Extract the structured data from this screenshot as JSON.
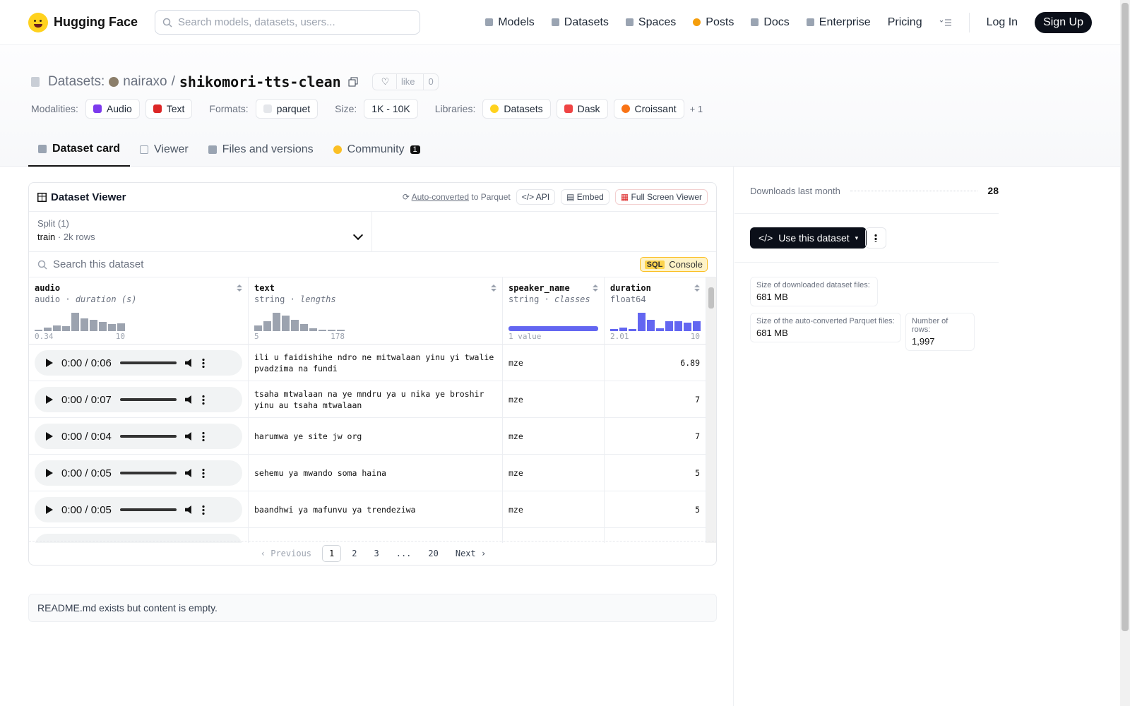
{
  "header": {
    "brand": "Hugging Face",
    "search_placeholder": "Search models, datasets, users...",
    "nav": [
      "Models",
      "Datasets",
      "Spaces",
      "Posts",
      "Docs",
      "Enterprise",
      "Pricing"
    ],
    "login": "Log In",
    "signup": "Sign Up"
  },
  "repo": {
    "type_label": "Datasets:",
    "owner": "nairaxo",
    "separator": "/",
    "name": "shikomori-tts-clean",
    "like_label": "like",
    "like_count": "0",
    "modalities_label": "Modalities:",
    "modalities": [
      "Audio",
      "Text"
    ],
    "formats_label": "Formats:",
    "formats": [
      "parquet"
    ],
    "size_label": "Size:",
    "size": "1K - 10K",
    "libraries_label": "Libraries:",
    "libraries": [
      "Datasets",
      "Dask",
      "Croissant"
    ],
    "libraries_more": "+ 1"
  },
  "tabs": [
    {
      "label": "Dataset card"
    },
    {
      "label": "Viewer"
    },
    {
      "label": "Files and versions"
    },
    {
      "label": "Community",
      "badge": "1"
    }
  ],
  "viewer": {
    "title": "Dataset Viewer",
    "auto_converted": "Auto-converted",
    "to_parquet": "to Parquet",
    "api": "API",
    "embed": "Embed",
    "full_screen": "Full Screen Viewer",
    "split_label": "Split (1)",
    "split_value": "train",
    "split_rows": "2k rows",
    "search_placeholder": "Search this dataset",
    "sql_tag": "SQL",
    "console": "Console",
    "columns": [
      {
        "name": "audio",
        "type": "audio",
        "stat": "duration (s)",
        "min": "0.34",
        "max": "10",
        "hist": [
          2,
          5,
          8,
          7,
          26,
          18,
          16,
          13,
          10,
          11
        ]
      },
      {
        "name": "text",
        "type": "string",
        "stat": "lengths",
        "min": "5",
        "max": "178",
        "hist": [
          8,
          14,
          26,
          22,
          16,
          10,
          4,
          2,
          2,
          2
        ]
      },
      {
        "name": "speaker_name",
        "type": "string",
        "stat": "classes",
        "min": "1 value",
        "max": ""
      },
      {
        "name": "duration",
        "type": "float64",
        "stat": "",
        "min": "2.01",
        "max": "10",
        "hist": [
          3,
          5,
          3,
          26,
          16,
          4,
          14,
          14,
          12,
          14
        ]
      }
    ],
    "rows": [
      {
        "time": "0:00 / 0:06",
        "text": "ili u faidishihe ndro ne mitwalaan yinu yi twalie pvadzima na fundi",
        "speaker": "mze",
        "duration": "6.89"
      },
      {
        "time": "0:00 / 0:07",
        "text": "tsaha mtwalaan na ye mndru ya u nika ye broshir yinu au tsaha mtwalaan",
        "speaker": "mze",
        "duration": "7"
      },
      {
        "time": "0:00 / 0:04",
        "text": "harumwa ye site jw org",
        "speaker": "mze",
        "duration": "7"
      },
      {
        "time": "0:00 / 0:05",
        "text": "sehemu ya mwando soma haina",
        "speaker": "mze",
        "duration": "5"
      },
      {
        "time": "0:00 / 0:05",
        "text": "baandhwi ya mafunvu ya trendeziwa",
        "speaker": "mze",
        "duration": "5"
      }
    ],
    "pager": {
      "prev": "Previous",
      "pages": [
        "1",
        "2",
        "3",
        "...",
        "20"
      ],
      "next": "Next"
    }
  },
  "readme_note": "README.md exists but content is empty.",
  "sidebar": {
    "downloads_label": "Downloads last month",
    "downloads_value": "28",
    "use_button": "Use this dataset",
    "stats": [
      {
        "label": "Size of downloaded dataset files:",
        "value": "681 MB"
      },
      {
        "label": "Size of the auto-converted Parquet files:",
        "value": "681 MB"
      },
      {
        "label": "Number of rows:",
        "value": "1,997"
      }
    ]
  },
  "colors": {
    "accent": "#6366f1",
    "dark": "#0b0f19",
    "hist_gray": "#9ca3af",
    "logo": "#ffd21e"
  }
}
